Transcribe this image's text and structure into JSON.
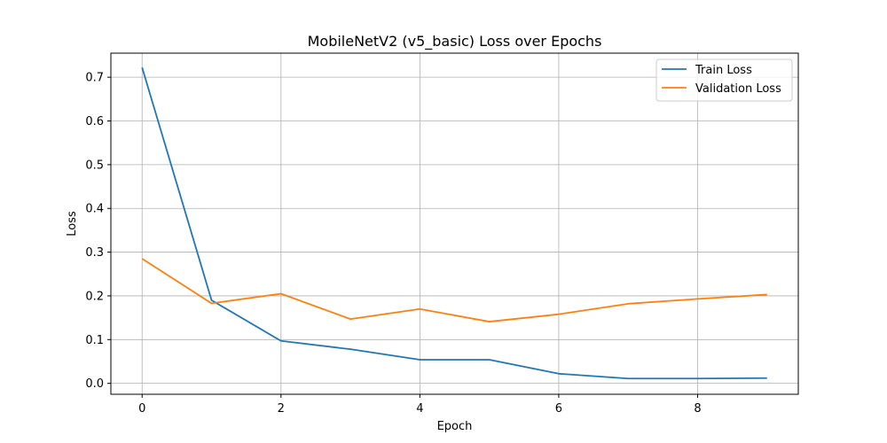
{
  "chart_data": {
    "type": "line",
    "title": "MobileNetV2 (v5_basic) Loss over Epochs",
    "xlabel": "Epoch",
    "ylabel": "Loss",
    "x": [
      0,
      1,
      2,
      3,
      4,
      5,
      6,
      7,
      8,
      9
    ],
    "xlim": [
      -0.45,
      9.45
    ],
    "ylim": [
      -0.025,
      0.755
    ],
    "xticks": [
      0,
      2,
      4,
      6,
      8
    ],
    "yticks": [
      0.0,
      0.1,
      0.2,
      0.3,
      0.4,
      0.5,
      0.6,
      0.7
    ],
    "xtick_labels": [
      "0",
      "2",
      "4",
      "6",
      "8"
    ],
    "ytick_labels": [
      "0.0",
      "0.1",
      "0.2",
      "0.3",
      "0.4",
      "0.5",
      "0.6",
      "0.7"
    ],
    "grid": true,
    "legend_position": "top-right",
    "series": [
      {
        "name": "Train Loss",
        "color": "#1f77b4",
        "values": [
          0.722,
          0.19,
          0.097,
          0.078,
          0.054,
          0.054,
          0.022,
          0.011,
          0.011,
          0.012
        ]
      },
      {
        "name": "Validation Loss",
        "color": "#ff7f0e",
        "values": [
          0.285,
          0.183,
          0.205,
          0.147,
          0.17,
          0.141,
          0.158,
          0.182,
          0.193,
          0.203
        ]
      }
    ]
  }
}
